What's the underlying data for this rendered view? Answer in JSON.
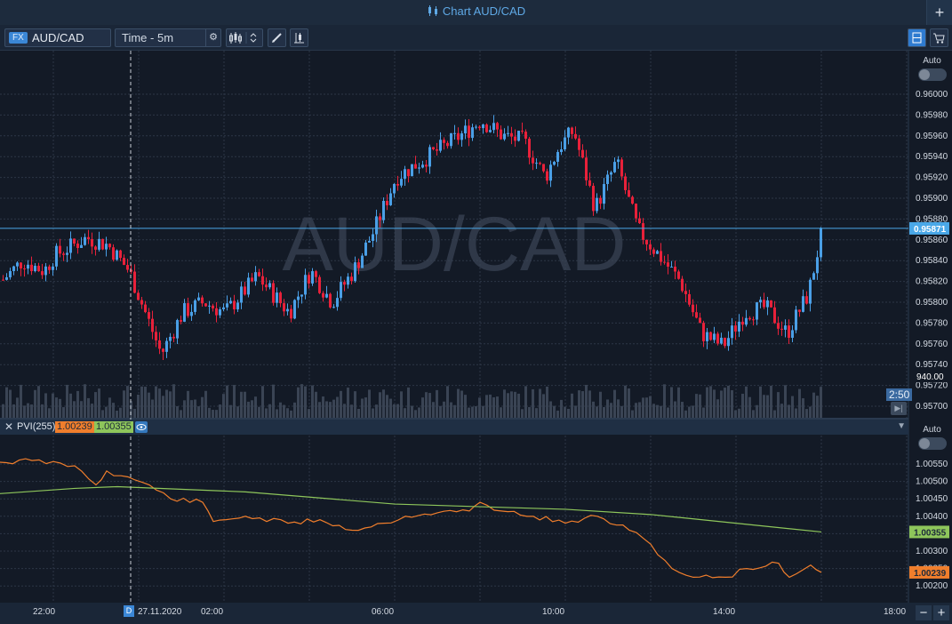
{
  "window": {
    "title": "Chart AUD/CAD",
    "plus": "+"
  },
  "toolbar": {
    "fx_badge": "FX",
    "symbol": "AUD/CAD",
    "timeframe": "Time - 5m",
    "gear": "⚙"
  },
  "watermark": "AUD/CAD",
  "price_axis": {
    "auto_label": "Auto",
    "ticks": [
      "0.96000",
      "0.95980",
      "0.95960",
      "0.95940",
      "0.95920",
      "0.95900",
      "0.95880",
      "0.95860",
      "0.95840",
      "0.95820",
      "0.95800",
      "0.95780",
      "0.95760",
      "0.95740",
      "0.95720",
      "0.95700"
    ],
    "current_price": "0.95871",
    "volume_label": "940.00",
    "countdown": "2:50"
  },
  "pvi_panel": {
    "close": "✕",
    "name": "PVI(255)",
    "value1": "1.00239",
    "value2": "1.00355",
    "auto_label": "Auto",
    "ticks": [
      "1.00550",
      "1.00500",
      "1.00450",
      "1.00400",
      "1.00350",
      "1.00300",
      "1.00250",
      "1.00200"
    ],
    "value1_tag": "1.00239",
    "value2_tag": "1.00355"
  },
  "time_axis": {
    "ticks": [
      "22:00",
      "27.11.2020",
      "02:00",
      "06:00",
      "10:00",
      "14:00",
      "18:00"
    ],
    "date_marker": "D",
    "zoom_out": "−",
    "zoom_in": "+"
  },
  "chart_data": [
    {
      "type": "candlestick",
      "title": "AUD/CAD",
      "timeframe": "5m",
      "ylim": [
        0.957,
        0.9601
      ],
      "x_ticks": [
        "22:00",
        "02:00",
        "06:00",
        "10:00",
        "14:00",
        "18:00"
      ],
      "y_ticks": [
        0.96,
        0.9598,
        0.9596,
        0.9594,
        0.9592,
        0.959,
        0.9588,
        0.9586,
        0.9584,
        0.9582,
        0.958,
        0.9578,
        0.9576,
        0.9574,
        0.9572,
        0.957
      ],
      "current_price": 0.95871,
      "colors": {
        "up": "#4a9fe6",
        "down": "#e8213a",
        "volume": "#3a4454"
      },
      "path": [
        {
          "x": "20:45",
          "y": 0.9582
        },
        {
          "x": "21:15",
          "y": 0.9584
        },
        {
          "x": "21:45",
          "y": 0.9583
        },
        {
          "x": "22:00",
          "y": 0.95845
        },
        {
          "x": "22:45",
          "y": 0.95862
        },
        {
          "x": "23:15",
          "y": 0.95855
        },
        {
          "x": "23:45",
          "y": 0.9583
        },
        {
          "x": "00:30",
          "y": 0.9575
        },
        {
          "x": "01:00",
          "y": 0.9579
        },
        {
          "x": "01:30",
          "y": 0.958
        },
        {
          "x": "02:00",
          "y": 0.9579
        },
        {
          "x": "02:45",
          "y": 0.95825
        },
        {
          "x": "03:30",
          "y": 0.9579
        },
        {
          "x": "04:00",
          "y": 0.9583
        },
        {
          "x": "04:30",
          "y": 0.958
        },
        {
          "x": "05:00",
          "y": 0.9583
        },
        {
          "x": "05:30",
          "y": 0.9587
        },
        {
          "x": "06:00",
          "y": 0.9592
        },
        {
          "x": "06:45",
          "y": 0.9594
        },
        {
          "x": "07:30",
          "y": 0.9596
        },
        {
          "x": "08:00",
          "y": 0.95975
        },
        {
          "x": "08:30",
          "y": 0.9596
        },
        {
          "x": "09:00",
          "y": 0.95955
        },
        {
          "x": "09:30",
          "y": 0.9592
        },
        {
          "x": "09:50",
          "y": 0.9595
        },
        {
          "x": "10:10",
          "y": 0.95965
        },
        {
          "x": "10:40",
          "y": 0.9589
        },
        {
          "x": "11:10",
          "y": 0.95935
        },
        {
          "x": "11:40",
          "y": 0.9587
        },
        {
          "x": "12:10",
          "y": 0.95845
        },
        {
          "x": "12:40",
          "y": 0.9582
        },
        {
          "x": "13:10",
          "y": 0.9577
        },
        {
          "x": "13:40",
          "y": 0.95758
        },
        {
          "x": "14:10",
          "y": 0.9579
        },
        {
          "x": "14:40",
          "y": 0.95795
        },
        {
          "x": "15:10",
          "y": 0.9577
        },
        {
          "x": "15:40",
          "y": 0.95808
        },
        {
          "x": "16:00",
          "y": 0.95871
        }
      ]
    },
    {
      "type": "line",
      "title": "PVI(255)",
      "ylim": [
        1.00185,
        1.00575
      ],
      "y_ticks": [
        1.0055,
        1.005,
        1.0045,
        1.004,
        1.0035,
        1.003,
        1.0025,
        1.002
      ],
      "series": [
        {
          "name": "PVI",
          "color": "#f07e2c",
          "last": 1.00239,
          "points": [
            {
              "x": "20:45",
              "y": 1.00555
            },
            {
              "x": "21:30",
              "y": 1.0056
            },
            {
              "x": "22:30",
              "y": 1.00545
            },
            {
              "x": "23:00",
              "y": 1.0049
            },
            {
              "x": "23:15",
              "y": 1.0053
            },
            {
              "x": "00:15",
              "y": 1.0049
            },
            {
              "x": "00:45",
              "y": 1.0045
            },
            {
              "x": "01:30",
              "y": 1.0044
            },
            {
              "x": "01:45",
              "y": 1.00385
            },
            {
              "x": "02:30",
              "y": 1.004
            },
            {
              "x": "03:30",
              "y": 1.0038
            },
            {
              "x": "04:15",
              "y": 1.0039
            },
            {
              "x": "05:00",
              "y": 1.0036
            },
            {
              "x": "05:45",
              "y": 1.0038
            },
            {
              "x": "06:15",
              "y": 1.004
            },
            {
              "x": "07:00",
              "y": 1.0041
            },
            {
              "x": "07:45",
              "y": 1.00415
            },
            {
              "x": "08:00",
              "y": 1.0044
            },
            {
              "x": "08:30",
              "y": 1.00415
            },
            {
              "x": "09:15",
              "y": 1.004
            },
            {
              "x": "10:00",
              "y": 1.0038
            },
            {
              "x": "10:45",
              "y": 1.004
            },
            {
              "x": "11:30",
              "y": 1.0036
            },
            {
              "x": "12:00",
              "y": 1.0032
            },
            {
              "x": "12:30",
              "y": 1.0025
            },
            {
              "x": "13:00",
              "y": 1.00225
            },
            {
              "x": "13:45",
              "y": 1.00225
            },
            {
              "x": "14:15",
              "y": 1.0025
            },
            {
              "x": "15:00",
              "y": 1.00265
            },
            {
              "x": "15:15",
              "y": 1.00225
            },
            {
              "x": "15:45",
              "y": 1.0026
            },
            {
              "x": "16:00",
              "y": 1.00239
            }
          ]
        },
        {
          "name": "Signal",
          "color": "#8ec65b",
          "last": 1.00355,
          "points": [
            {
              "x": "20:45",
              "y": 1.00465
            },
            {
              "x": "22:30",
              "y": 1.0048
            },
            {
              "x": "23:30",
              "y": 1.00485
            },
            {
              "x": "02:30",
              "y": 1.0047
            },
            {
              "x": "06:00",
              "y": 1.00435
            },
            {
              "x": "10:00",
              "y": 1.0042
            },
            {
              "x": "12:00",
              "y": 1.00405
            },
            {
              "x": "14:00",
              "y": 1.0038
            },
            {
              "x": "16:00",
              "y": 1.00355
            }
          ]
        }
      ]
    }
  ]
}
